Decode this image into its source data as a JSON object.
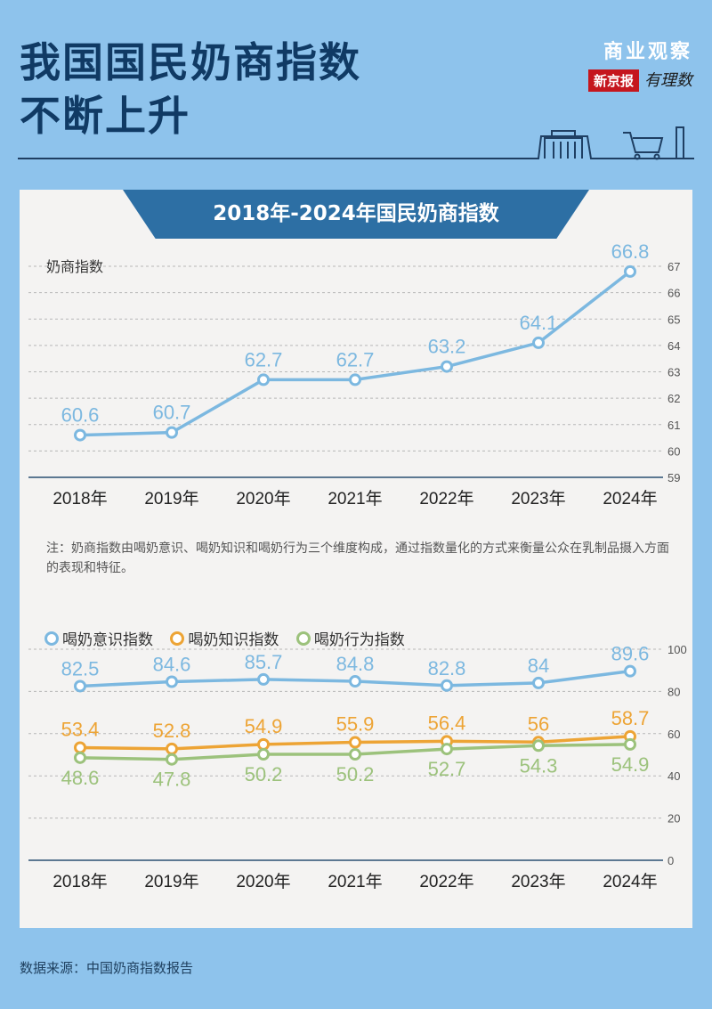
{
  "header": {
    "title_line1": "我国国民奶商指数",
    "title_line2": "不断上升",
    "brand_top": "商业观察",
    "brand_paper": "新京报",
    "brand_column": "有理数"
  },
  "chart_data": [
    {
      "type": "line",
      "title": "2018年-2024年国民奶商指数",
      "ylabel": "奶商指数",
      "categories": [
        "2018年",
        "2019年",
        "2020年",
        "2021年",
        "2022年",
        "2023年",
        "2024年"
      ],
      "series": [
        {
          "values": [
            60.6,
            60.7,
            62.7,
            62.7,
            63.2,
            64.1,
            66.8
          ],
          "labels": [
            "60.6",
            "60.7",
            "62.7",
            "62.7",
            "63.2",
            "64.1",
            "66.8"
          ],
          "color": "#7cb8e0"
        }
      ],
      "yticks": [
        "67",
        "66",
        "65",
        "64",
        "63",
        "62",
        "61",
        "60",
        "59"
      ],
      "ylim": [
        59,
        67
      ],
      "grid": true
    },
    {
      "type": "line",
      "categories": [
        "2018年",
        "2019年",
        "2020年",
        "2021年",
        "2022年",
        "2023年",
        "2024年"
      ],
      "series": [
        {
          "name": "喝奶意识指数",
          "values": [
            82.5,
            84.6,
            85.7,
            84.8,
            82.8,
            84,
            89.6
          ],
          "labels": [
            "82.5",
            "84.6",
            "85.7",
            "84.8",
            "82.8",
            "84",
            "89.6"
          ],
          "color": "#7cb8e0"
        },
        {
          "name": "喝奶知识指数",
          "values": [
            53.4,
            52.8,
            54.9,
            55.9,
            56.4,
            56,
            58.7
          ],
          "labels": [
            "53.4",
            "52.8",
            "54.9",
            "55.9",
            "56.4",
            "56",
            "58.7"
          ],
          "color": "#eda435"
        },
        {
          "name": "喝奶行为指数",
          "values": [
            48.6,
            47.8,
            50.2,
            50.2,
            52.7,
            54.3,
            54.9
          ],
          "labels": [
            "48.6",
            "47.8",
            "50.2",
            "50.2",
            "52.7",
            "54.3",
            "54.9"
          ],
          "color": "#9cc27c"
        }
      ],
      "yticks": [
        "100",
        "80",
        "60",
        "40",
        "20",
        "0"
      ],
      "ylim": [
        0,
        100
      ],
      "legend": "top-left",
      "grid": true
    }
  ],
  "note": "注：奶商指数由喝奶意识、喝奶知识和喝奶行为三个维度构成，通过指数量化的方式来衡量公众在乳制品摄入方面的表现和特征。",
  "source": "数据来源：中国奶商指数报告"
}
